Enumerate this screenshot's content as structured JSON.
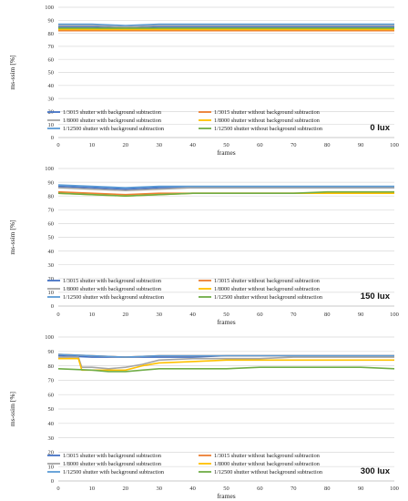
{
  "chart_data": [
    {
      "type": "line",
      "annotation": "0 lux",
      "xlabel": "frames",
      "ylabel": "ms-ssim [%]",
      "xlim": [
        0,
        100
      ],
      "ylim": [
        0,
        100
      ],
      "xticks": [
        "0",
        "10",
        "20",
        "30",
        "40",
        "50",
        "60",
        "70",
        "80",
        "90",
        "100"
      ],
      "yticks": [
        "0",
        "10",
        "20",
        "30",
        "40",
        "50",
        "60",
        "70",
        "80",
        "90",
        "100"
      ],
      "grid": "horizontal",
      "legend_placement": "bottom",
      "series": [
        {
          "name": "1/3015 shutter with background subtraction",
          "color": "#4472c4",
          "x": [
            0,
            10,
            20,
            30,
            40,
            50,
            60,
            70,
            80,
            90,
            100
          ],
          "y": [
            85,
            85,
            84,
            85,
            85,
            85,
            85,
            85,
            85,
            85,
            85
          ]
        },
        {
          "name": "1/3015 shutter without background subtraction",
          "color": "#ed7d31",
          "x": [
            0,
            10,
            20,
            30,
            40,
            50,
            60,
            70,
            80,
            90,
            100
          ],
          "y": [
            82,
            82,
            82,
            82,
            82,
            82,
            82,
            82,
            82,
            82,
            82
          ]
        },
        {
          "name": "1/8000 shutter with background subtraction",
          "color": "#a5a5a5",
          "x": [
            0,
            10,
            20,
            30,
            40,
            50,
            60,
            70,
            80,
            90,
            100
          ],
          "y": [
            86,
            86,
            85,
            86,
            86,
            86,
            86,
            86,
            86,
            86,
            86
          ]
        },
        {
          "name": "1/8000 shutter without background subtraction",
          "color": "#ffc000",
          "x": [
            0,
            10,
            20,
            30,
            40,
            50,
            60,
            70,
            80,
            90,
            100
          ],
          "y": [
            83,
            83,
            83,
            83,
            83,
            83,
            83,
            83,
            83,
            83,
            83
          ]
        },
        {
          "name": "1/12500 shutter with background subtraction",
          "color": "#5b9bd5",
          "x": [
            0,
            10,
            20,
            30,
            40,
            50,
            60,
            70,
            80,
            90,
            100
          ],
          "y": [
            87,
            87,
            86,
            87,
            87,
            87,
            87,
            87,
            87,
            87,
            87
          ]
        },
        {
          "name": "1/12500 shutter without background subtraction",
          "color": "#70ad47",
          "x": [
            0,
            10,
            20,
            30,
            40,
            50,
            60,
            70,
            80,
            90,
            100
          ],
          "y": [
            84,
            84,
            84,
            84,
            84,
            84,
            84,
            84,
            84,
            84,
            84
          ]
        }
      ]
    },
    {
      "type": "line",
      "annotation": "150 lux",
      "xlabel": "frames",
      "ylabel": "ms-ssim [%]",
      "xlim": [
        0,
        100
      ],
      "ylim": [
        0,
        100
      ],
      "xticks": [
        "0",
        "10",
        "20",
        "30",
        "40",
        "50",
        "60",
        "70",
        "80",
        "90",
        "100"
      ],
      "yticks": [
        "0",
        "10",
        "20",
        "30",
        "40",
        "50",
        "60",
        "70",
        "80",
        "90",
        "100"
      ],
      "grid": "horizontal",
      "legend_placement": "bottom",
      "series": [
        {
          "name": "1/3015 shutter with background subtraction",
          "color": "#4472c4",
          "x": [
            0,
            10,
            20,
            30,
            40,
            50,
            60,
            70,
            80,
            90,
            100
          ],
          "y": [
            87,
            86,
            85,
            86,
            86,
            86,
            86,
            86,
            86,
            86,
            86
          ]
        },
        {
          "name": "1/3015 shutter without background subtraction",
          "color": "#ed7d31",
          "x": [
            0,
            10,
            20,
            30,
            40,
            50,
            60,
            70,
            80,
            90,
            100
          ],
          "y": [
            83,
            82,
            81,
            82,
            82,
            82,
            82,
            82,
            82,
            82,
            82
          ]
        },
        {
          "name": "1/8000 shutter with background subtraction",
          "color": "#a5a5a5",
          "x": [
            0,
            10,
            20,
            30,
            40,
            50,
            60,
            70,
            80,
            90,
            100
          ],
          "y": [
            86,
            85,
            84,
            85,
            86,
            86,
            86,
            86,
            86,
            86,
            86
          ]
        },
        {
          "name": "1/8000 shutter without background subtraction",
          "color": "#ffc000",
          "x": [
            0,
            10,
            20,
            30,
            40,
            50,
            60,
            70,
            80,
            90,
            100
          ],
          "y": [
            82,
            81,
            80,
            81,
            82,
            82,
            82,
            82,
            82,
            82,
            82
          ]
        },
        {
          "name": "1/12500 shutter with background subtraction",
          "color": "#5b9bd5",
          "x": [
            0,
            10,
            20,
            30,
            40,
            50,
            60,
            70,
            80,
            90,
            100
          ],
          "y": [
            88,
            87,
            86,
            87,
            87,
            87,
            87,
            87,
            87,
            87,
            87
          ]
        },
        {
          "name": "1/12500 shutter without background subtraction",
          "color": "#70ad47",
          "x": [
            0,
            10,
            20,
            30,
            40,
            50,
            60,
            70,
            80,
            90,
            100
          ],
          "y": [
            82,
            81,
            80,
            81,
            82,
            82,
            82,
            82,
            83,
            83,
            83
          ]
        }
      ]
    },
    {
      "type": "line",
      "annotation": "300 lux",
      "xlabel": "frames",
      "ylabel": "ms-ssim [%]",
      "xlim": [
        0,
        100
      ],
      "ylim": [
        0,
        100
      ],
      "xticks": [
        "0",
        "10",
        "20",
        "30",
        "40",
        "50",
        "60",
        "70",
        "80",
        "90",
        "100"
      ],
      "yticks": [
        "0",
        "10",
        "20",
        "30",
        "40",
        "50",
        "60",
        "70",
        "80",
        "90",
        "100"
      ],
      "grid": "horizontal",
      "legend_placement": "bottom",
      "series": [
        {
          "name": "1/3015 shutter with background subtraction",
          "color": "#4472c4",
          "x": [
            0,
            10,
            20,
            30,
            40,
            50,
            60,
            70,
            80,
            90,
            100
          ],
          "y": [
            87,
            86,
            86,
            86,
            86,
            87,
            87,
            87,
            87,
            87,
            87
          ]
        },
        {
          "name": "1/3015 shutter without background subtraction",
          "color": "#ed7d31",
          "x": [
            0,
            10,
            20,
            30,
            40,
            50,
            60,
            70,
            80,
            90,
            100
          ],
          "y": [
            88,
            87,
            86,
            87,
            87,
            87,
            87,
            87,
            87,
            87,
            87
          ]
        },
        {
          "name": "1/8000 shutter with background subtraction",
          "color": "#a5a5a5",
          "x": [
            0,
            6,
            7,
            10,
            15,
            20,
            25,
            30,
            40,
            50,
            60,
            70,
            80,
            90,
            100
          ],
          "y": [
            86,
            86,
            79,
            79,
            78,
            79,
            81,
            84,
            85,
            85,
            85,
            86,
            86,
            86,
            86
          ]
        },
        {
          "name": "1/8000 shutter without background subtraction",
          "color": "#ffc000",
          "x": [
            0,
            6,
            7,
            10,
            15,
            20,
            25,
            30,
            40,
            50,
            60,
            70,
            80,
            90,
            100
          ],
          "y": [
            85,
            85,
            77,
            77,
            77,
            77,
            80,
            82,
            83,
            84,
            84,
            84,
            84,
            84,
            84
          ]
        },
        {
          "name": "1/12500 shutter with background subtraction",
          "color": "#5b9bd5",
          "x": [
            0,
            10,
            20,
            30,
            40,
            50,
            60,
            70,
            80,
            90,
            100
          ],
          "y": [
            88,
            87,
            86,
            87,
            87,
            87,
            87,
            87,
            87,
            87,
            87
          ]
        },
        {
          "name": "1/12500 shutter without background subtraction",
          "color": "#70ad47",
          "x": [
            0,
            10,
            15,
            20,
            25,
            30,
            40,
            50,
            60,
            70,
            80,
            90,
            100
          ],
          "y": [
            78,
            77,
            76,
            76,
            77,
            78,
            78,
            78,
            79,
            79,
            79,
            79,
            78
          ]
        }
      ]
    }
  ]
}
